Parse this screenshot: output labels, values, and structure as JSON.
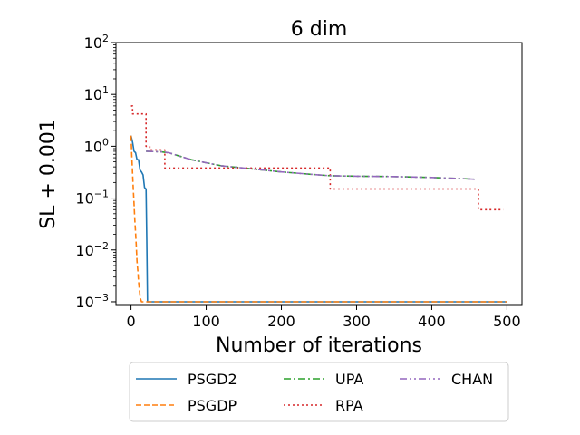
{
  "chart_data": {
    "type": "line",
    "title": "6 dim",
    "xlabel": "Number of iterations",
    "ylabel": "SL + 0.001",
    "yscale": "log",
    "xlim": [
      -20,
      520
    ],
    "ylim": [
      0.00085,
      100
    ],
    "x_ticks": [
      0,
      100,
      200,
      300,
      400,
      500
    ],
    "x_tick_labels": [
      "0",
      "100",
      "200",
      "300",
      "400",
      "500"
    ],
    "y_ticks": [
      0.001,
      0.01,
      0.1,
      1,
      10,
      100
    ],
    "y_tick_mantissa": "10",
    "y_tick_exponents": [
      "−3",
      "−2",
      "−1",
      "0",
      "1",
      "2"
    ],
    "legend_position": "below",
    "series": [
      {
        "name": "PSGD2",
        "color": "#1f77b4",
        "dash": "solid",
        "x": [
          0,
          2,
          4,
          6,
          8,
          10,
          12,
          14,
          16,
          18,
          20,
          21,
          22,
          24,
          60,
          120,
          200,
          300,
          400,
          500
        ],
        "y": [
          1.6,
          1.2,
          0.8,
          0.75,
          0.55,
          0.55,
          0.35,
          0.32,
          0.28,
          0.16,
          0.15,
          0.015,
          0.001,
          0.001,
          0.001,
          0.001,
          0.001,
          0.001,
          0.001,
          0.001
        ]
      },
      {
        "name": "PSGDP",
        "color": "#ff7f0e",
        "dash": "dashed",
        "x": [
          0,
          1,
          2,
          3,
          4,
          5,
          6,
          7,
          8,
          9,
          10,
          11,
          12,
          13,
          14,
          16,
          20,
          60,
          120,
          200,
          300,
          400,
          500
        ],
        "y": [
          1.6,
          0.7,
          0.3,
          0.15,
          0.08,
          0.04,
          0.022,
          0.012,
          0.006,
          0.004,
          0.0025,
          0.0018,
          0.0013,
          0.0011,
          0.001,
          0.001,
          0.001,
          0.001,
          0.001,
          0.001,
          0.001,
          0.001,
          0.001
        ]
      },
      {
        "name": "UPA",
        "color": "#2ca02c",
        "dash": "dashdot",
        "x": [
          20,
          40,
          50,
          80,
          100,
          120,
          150,
          200,
          250,
          265,
          300,
          350,
          400,
          450,
          460
        ],
        "y": [
          0.8,
          0.78,
          0.75,
          0.55,
          0.48,
          0.42,
          0.38,
          0.32,
          0.28,
          0.27,
          0.265,
          0.26,
          0.25,
          0.235,
          0.23
        ]
      },
      {
        "name": "RPA",
        "color": "#d62728",
        "dash": "dotted",
        "x": [
          0,
          2,
          2,
          20,
          20,
          25,
          25,
          45,
          45,
          265,
          265,
          462,
          462,
          495
        ],
        "y": [
          6,
          6,
          4.2,
          4.2,
          1,
          1,
          0.85,
          0.85,
          0.38,
          0.38,
          0.15,
          0.15,
          0.06,
          0.06
        ]
      },
      {
        "name": "CHAN",
        "color": "#9467bd",
        "dash": "dashdotdot",
        "x": [
          20,
          40,
          50,
          80,
          100,
          120,
          150,
          200,
          250,
          265,
          300,
          350,
          400,
          450,
          460
        ],
        "y": [
          0.8,
          0.78,
          0.75,
          0.55,
          0.48,
          0.42,
          0.38,
          0.32,
          0.28,
          0.27,
          0.265,
          0.26,
          0.25,
          0.235,
          0.23
        ]
      }
    ]
  }
}
